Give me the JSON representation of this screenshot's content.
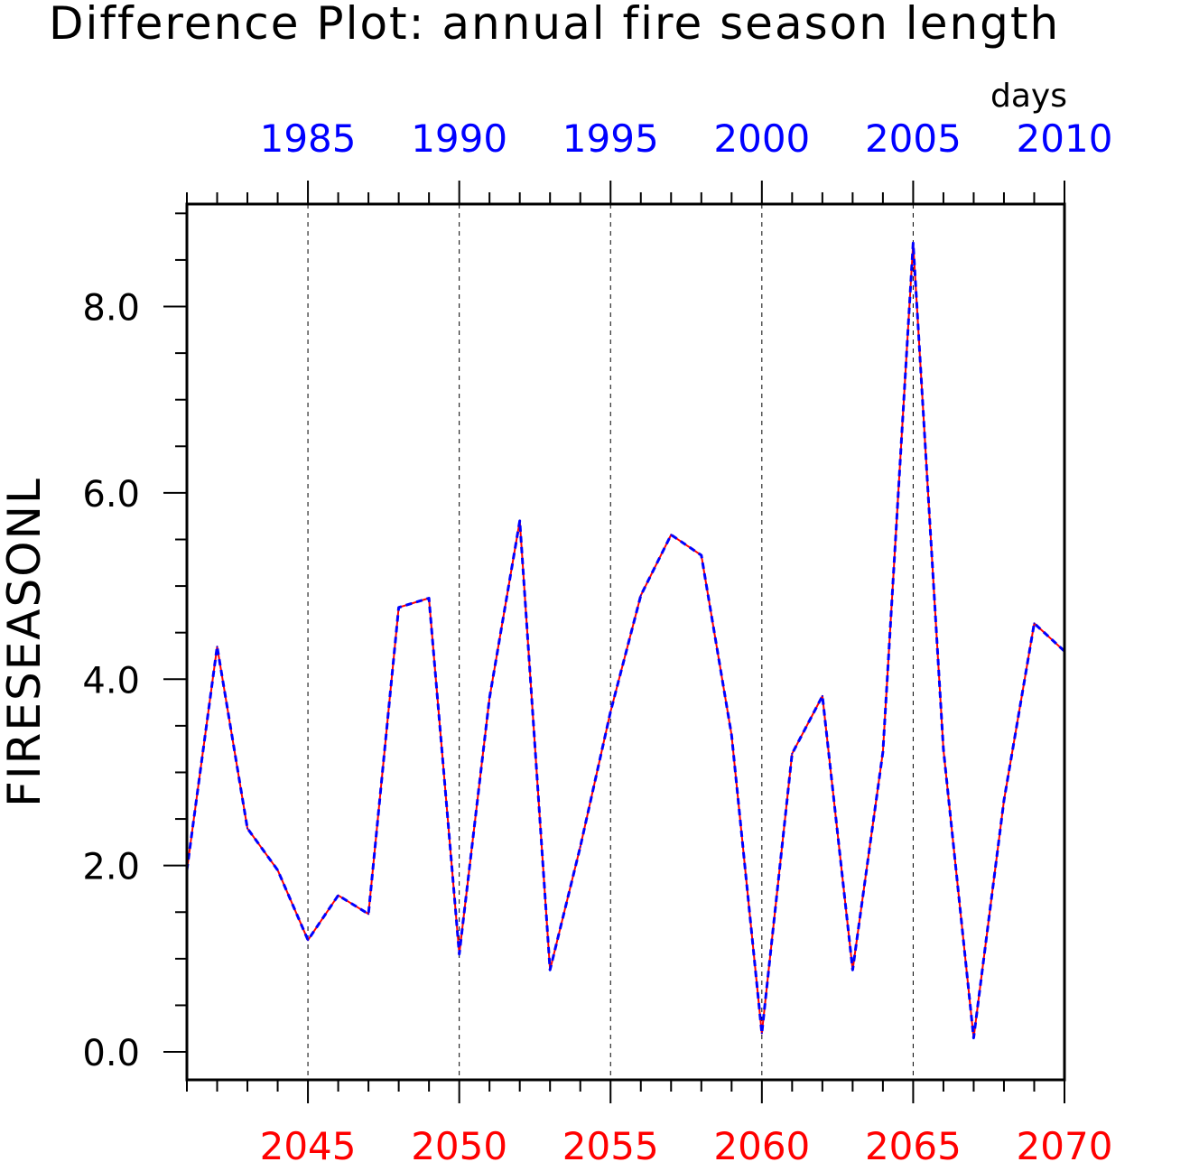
{
  "chart_data": {
    "type": "line",
    "title": "Difference Plot: annual fire season length",
    "units": "days",
    "ylabel": "FIRESEASONL",
    "ylim": [
      -0.3,
      9.1
    ],
    "yticks": [
      "0.0",
      "2.0",
      "4.0",
      "6.0",
      "8.0"
    ],
    "x_bottom": {
      "range": [
        2041,
        2070
      ],
      "ticks": [
        "2045",
        "2050",
        "2055",
        "2060",
        "2065",
        "2070"
      ],
      "color": "#ff0000"
    },
    "x_top": {
      "range": [
        1981,
        2010
      ],
      "ticks": [
        "1985",
        "1990",
        "1995",
        "2000",
        "2005",
        "2010"
      ],
      "color": "#0000ff"
    },
    "grid": "dashed vertical lines at major bottom ticks",
    "x": [
      2041,
      2042,
      2043,
      2044,
      2045,
      2046,
      2047,
      2048,
      2049,
      2050,
      2051,
      2052,
      2053,
      2054,
      2055,
      2056,
      2057,
      2058,
      2059,
      2060,
      2061,
      2062,
      2063,
      2064,
      2065,
      2066,
      2067,
      2068,
      2069,
      2070
    ],
    "series": [
      {
        "color": "#ff0000",
        "style": "solid",
        "values": [
          1.95,
          4.35,
          2.4,
          1.95,
          1.2,
          1.68,
          1.48,
          4.77,
          4.87,
          1.05,
          3.8,
          5.7,
          0.88,
          2.2,
          3.65,
          4.9,
          5.55,
          5.33,
          3.4,
          0.2,
          3.2,
          3.82,
          0.88,
          3.22,
          8.68,
          3.25,
          0.15,
          2.7,
          4.6,
          4.3
        ]
      },
      {
        "color": "#0000ff",
        "style": "dashed",
        "values": [
          1.95,
          4.35,
          2.4,
          1.95,
          1.2,
          1.68,
          1.48,
          4.77,
          4.87,
          1.05,
          3.8,
          5.7,
          0.88,
          2.2,
          3.65,
          4.9,
          5.55,
          5.33,
          3.4,
          0.2,
          3.2,
          3.82,
          0.88,
          3.22,
          8.68,
          3.25,
          0.15,
          2.7,
          4.6,
          4.3
        ]
      }
    ]
  }
}
